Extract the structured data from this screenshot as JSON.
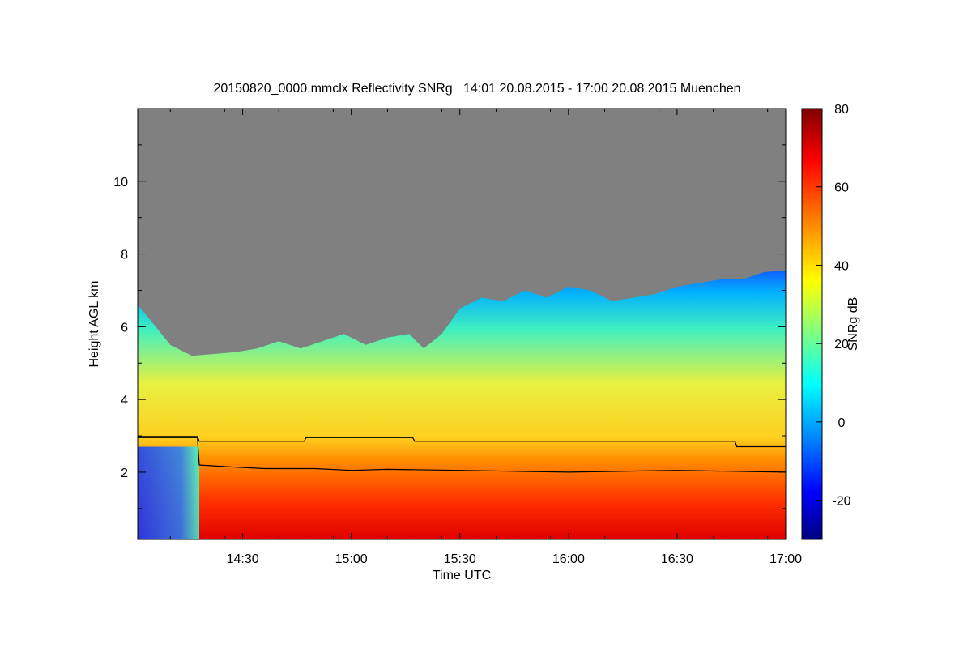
{
  "chart_data": {
    "type": "heatmap",
    "title": "20150820_0000.mmclx Reflectivity SNRg   14:01 20.08.2015 - 17:00 20.08.2015 Muenchen",
    "xlabel": "Time UTC",
    "ylabel": "Height AGL km",
    "x_range_minutes_utc": [
      841,
      1020
    ],
    "x_ticks": [
      {
        "minute": 870,
        "label": "14:30"
      },
      {
        "minute": 900,
        "label": "15:00"
      },
      {
        "minute": 930,
        "label": "15:30"
      },
      {
        "minute": 960,
        "label": "16:00"
      },
      {
        "minute": 990,
        "label": "16:30"
      },
      {
        "minute": 1020,
        "label": "17:00"
      }
    ],
    "y_range_km": [
      0.15,
      12.0
    ],
    "y_ticks": [
      {
        "value": 2,
        "label": "2"
      },
      {
        "value": 4,
        "label": "4"
      },
      {
        "value": 6,
        "label": "6"
      },
      {
        "value": 8,
        "label": "8"
      },
      {
        "value": 10,
        "label": "10"
      }
    ],
    "colorbar": {
      "label": "SNRg dB",
      "range": [
        -30,
        80
      ],
      "ticks": [
        {
          "value": -20,
          "label": "-20"
        },
        {
          "value": 0,
          "label": "0"
        },
        {
          "value": 20,
          "label": "20"
        },
        {
          "value": 40,
          "label": "40"
        },
        {
          "value": 60,
          "label": "60"
        },
        {
          "value": 80,
          "label": "80"
        }
      ],
      "colormap": [
        "#000080",
        "#0000ff",
        "#0080ff",
        "#00ffff",
        "#80ff80",
        "#ffff00",
        "#ff8000",
        "#ff0000",
        "#800000"
      ]
    },
    "no_signal_color": "#808080",
    "echo_top_km": [
      [
        841,
        6.6
      ],
      [
        846,
        6.0
      ],
      [
        850,
        5.5
      ],
      [
        856,
        5.2
      ],
      [
        862,
        5.25
      ],
      [
        868,
        5.3
      ],
      [
        874,
        5.4
      ],
      [
        880,
        5.6
      ],
      [
        886,
        5.4
      ],
      [
        892,
        5.6
      ],
      [
        898,
        5.8
      ],
      [
        904,
        5.5
      ],
      [
        910,
        5.7
      ],
      [
        916,
        5.8
      ],
      [
        920,
        5.4
      ],
      [
        925,
        5.8
      ],
      [
        930,
        6.5
      ],
      [
        936,
        6.8
      ],
      [
        942,
        6.7
      ],
      [
        948,
        7.0
      ],
      [
        954,
        6.8
      ],
      [
        960,
        7.1
      ],
      [
        966,
        7.0
      ],
      [
        972,
        6.7
      ],
      [
        978,
        6.8
      ],
      [
        984,
        6.9
      ],
      [
        990,
        7.1
      ],
      [
        996,
        7.2
      ],
      [
        1002,
        7.3
      ],
      [
        1008,
        7.3
      ],
      [
        1014,
        7.5
      ],
      [
        1020,
        7.55
      ]
    ],
    "melting_layer_km": [
      [
        841,
        2.95
      ],
      [
        857.5,
        2.95
      ],
      [
        858,
        2.2
      ],
      [
        866,
        2.15
      ],
      [
        876,
        2.1
      ],
      [
        890,
        2.1
      ],
      [
        900,
        2.05
      ],
      [
        910,
        2.08
      ],
      [
        930,
        2.05
      ],
      [
        960,
        2.0
      ],
      [
        990,
        2.05
      ],
      [
        1020,
        2.0
      ]
    ],
    "upper_line_km": [
      [
        841,
        2.98
      ],
      [
        857.5,
        2.98
      ],
      [
        858,
        2.85
      ],
      [
        887,
        2.85
      ],
      [
        887.5,
        2.95
      ],
      [
        917,
        2.95
      ],
      [
        917.5,
        2.85
      ],
      [
        1006,
        2.85
      ],
      [
        1006.5,
        2.7
      ],
      [
        1020,
        2.7
      ]
    ]
  }
}
